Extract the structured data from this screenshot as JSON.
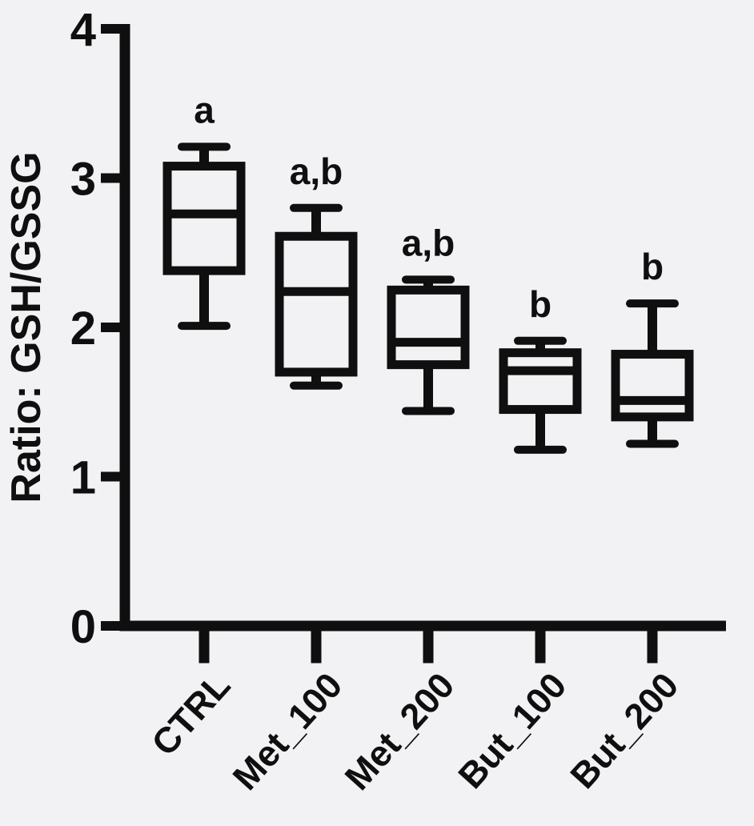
{
  "colors": {
    "ink": "#0f0f0f",
    "background": "#f2f2f4"
  },
  "chart_data": {
    "type": "box",
    "title": "",
    "xlabel": "",
    "ylabel": "Ratio: GSH/GSSG",
    "ylim": [
      0,
      4
    ],
    "yticks": [
      0,
      1,
      2,
      3,
      4
    ],
    "grid": false,
    "legend_position": "none",
    "categories": [
      "CTRL",
      "Met_100",
      "Met_200",
      "But_100",
      "But_200"
    ],
    "series": [
      {
        "name": "CTRL",
        "min": 2.01,
        "q1": 2.38,
        "median": 2.76,
        "q3": 3.08,
        "max": 3.21,
        "sig_label": "a"
      },
      {
        "name": "Met_100",
        "min": 1.61,
        "q1": 1.7,
        "median": 2.24,
        "q3": 2.61,
        "max": 2.8,
        "sig_label": "a,b"
      },
      {
        "name": "Met_200",
        "min": 1.44,
        "q1": 1.75,
        "median": 1.9,
        "q3": 2.25,
        "max": 2.32,
        "sig_label": "a,b"
      },
      {
        "name": "But_100",
        "min": 1.18,
        "q1": 1.45,
        "median": 1.71,
        "q3": 1.83,
        "max": 1.91,
        "sig_label": "b"
      },
      {
        "name": "But_200",
        "min": 1.22,
        "q1": 1.4,
        "median": 1.51,
        "q3": 1.82,
        "max": 2.16,
        "sig_label": "b"
      }
    ]
  }
}
